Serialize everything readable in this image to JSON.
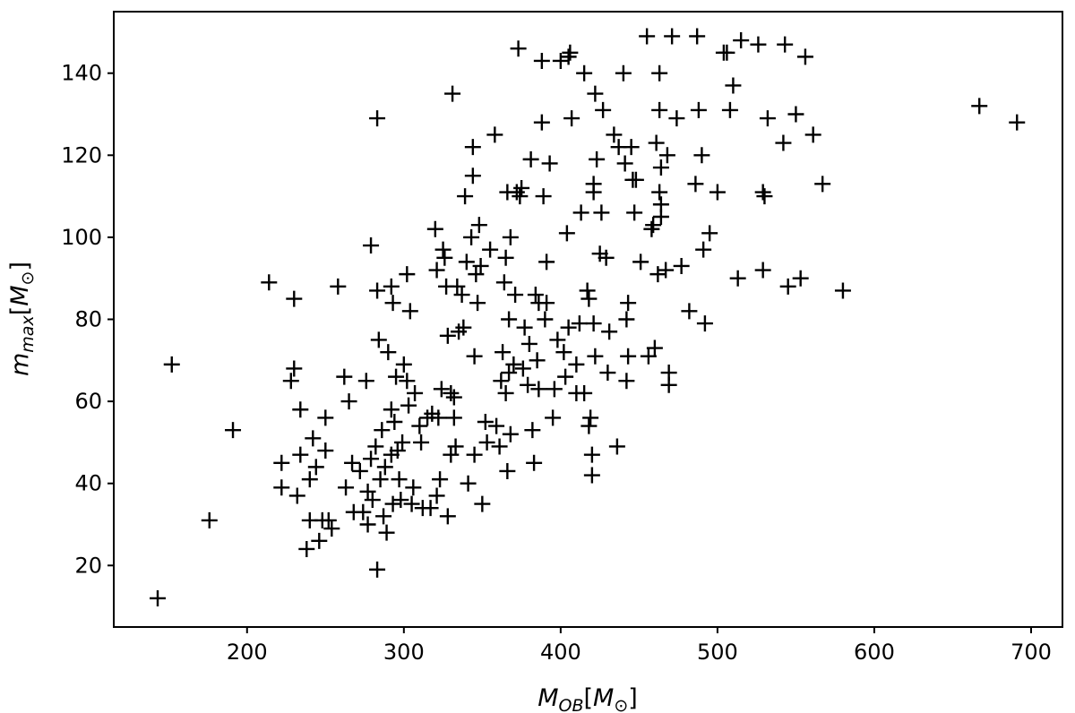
{
  "chart_data": {
    "type": "scatter",
    "marker": "+",
    "color": "#000000",
    "grid": false,
    "xlabel": {
      "main": "M",
      "sub": "OB",
      "unit_main": "M",
      "unit_sub": "⊙"
    },
    "ylabel": {
      "main": "m",
      "sub": "max",
      "unit_main": "M",
      "unit_sub": "⊙"
    },
    "xlim": [
      115,
      720
    ],
    "ylim": [
      5,
      155
    ],
    "xticks": [
      200,
      300,
      400,
      500,
      600,
      700
    ],
    "yticks": [
      20,
      40,
      60,
      80,
      100,
      120,
      140
    ],
    "points": [
      [
        143,
        12
      ],
      [
        152,
        69
      ],
      [
        176,
        31
      ],
      [
        191,
        53
      ],
      [
        214,
        89
      ],
      [
        222,
        45
      ],
      [
        222,
        39
      ],
      [
        228,
        65
      ],
      [
        230,
        68
      ],
      [
        230,
        85
      ],
      [
        232,
        37
      ],
      [
        234,
        58
      ],
      [
        234,
        47
      ],
      [
        238,
        24
      ],
      [
        240,
        41
      ],
      [
        240,
        31
      ],
      [
        242,
        51
      ],
      [
        244,
        44
      ],
      [
        246,
        26
      ],
      [
        248,
        31
      ],
      [
        250,
        48
      ],
      [
        250,
        56
      ],
      [
        252,
        31
      ],
      [
        254,
        29
      ],
      [
        258,
        88
      ],
      [
        262,
        66
      ],
      [
        263,
        39
      ],
      [
        265,
        60
      ],
      [
        267,
        45
      ],
      [
        268,
        33
      ],
      [
        272,
        43
      ],
      [
        274,
        33
      ],
      [
        276,
        65
      ],
      [
        277,
        38
      ],
      [
        277,
        30
      ],
      [
        279,
        98
      ],
      [
        279,
        46
      ],
      [
        280,
        36
      ],
      [
        282,
        49
      ],
      [
        283,
        19
      ],
      [
        283,
        87
      ],
      [
        283,
        129
      ],
      [
        284,
        75
      ],
      [
        285,
        41
      ],
      [
        286,
        53
      ],
      [
        287,
        32
      ],
      [
        288,
        44
      ],
      [
        289,
        28
      ],
      [
        290,
        72
      ],
      [
        292,
        88
      ],
      [
        292,
        58
      ],
      [
        292,
        47
      ],
      [
        293,
        84
      ],
      [
        293,
        35
      ],
      [
        294,
        55
      ],
      [
        295,
        66
      ],
      [
        296,
        48
      ],
      [
        297,
        41
      ],
      [
        298,
        36
      ],
      [
        299,
        50
      ],
      [
        300,
        69
      ],
      [
        302,
        65
      ],
      [
        302,
        91
      ],
      [
        303,
        59
      ],
      [
        304,
        82
      ],
      [
        305,
        35
      ],
      [
        306,
        39
      ],
      [
        307,
        62
      ],
      [
        310,
        54
      ],
      [
        311,
        50
      ],
      [
        312,
        34
      ],
      [
        315,
        56
      ],
      [
        317,
        34
      ],
      [
        318,
        57
      ],
      [
        320,
        102
      ],
      [
        321,
        37
      ],
      [
        321,
        92
      ],
      [
        322,
        56
      ],
      [
        323,
        41
      ],
      [
        324,
        63
      ],
      [
        325,
        97
      ],
      [
        326,
        95
      ],
      [
        327,
        88
      ],
      [
        328,
        32
      ],
      [
        328,
        76
      ],
      [
        330,
        47
      ],
      [
        330,
        62
      ],
      [
        331,
        135
      ],
      [
        332,
        56
      ],
      [
        332,
        61
      ],
      [
        333,
        49
      ],
      [
        334,
        88
      ],
      [
        335,
        77
      ],
      [
        337,
        86
      ],
      [
        338,
        78
      ],
      [
        339,
        110
      ],
      [
        340,
        94
      ],
      [
        341,
        40
      ],
      [
        343,
        100
      ],
      [
        344,
        122
      ],
      [
        344,
        115
      ],
      [
        345,
        71
      ],
      [
        345,
        47
      ],
      [
        346,
        91
      ],
      [
        347,
        84
      ],
      [
        348,
        103
      ],
      [
        349,
        93
      ],
      [
        350,
        35
      ],
      [
        352,
        55
      ],
      [
        353,
        50
      ],
      [
        355,
        97
      ],
      [
        358,
        125
      ],
      [
        359,
        54
      ],
      [
        361,
        49
      ],
      [
        362,
        65
      ],
      [
        363,
        72
      ],
      [
        364,
        89
      ],
      [
        365,
        95
      ],
      [
        365,
        62
      ],
      [
        366,
        43
      ],
      [
        366,
        111
      ],
      [
        367,
        67
      ],
      [
        367,
        80
      ],
      [
        368,
        100
      ],
      [
        368,
        52
      ],
      [
        370,
        69
      ],
      [
        371,
        86
      ],
      [
        372,
        111
      ],
      [
        373,
        146
      ],
      [
        374,
        110
      ],
      [
        375,
        112
      ],
      [
        376,
        68
      ],
      [
        377,
        78
      ],
      [
        379,
        64
      ],
      [
        380,
        74
      ],
      [
        381,
        119
      ],
      [
        382,
        53
      ],
      [
        383,
        45
      ],
      [
        384,
        86
      ],
      [
        385,
        70
      ],
      [
        386,
        63
      ],
      [
        386,
        84
      ],
      [
        388,
        128
      ],
      [
        388,
        143
      ],
      [
        389,
        110
      ],
      [
        390,
        80
      ],
      [
        391,
        94
      ],
      [
        391,
        84
      ],
      [
        393,
        118
      ],
      [
        395,
        56
      ],
      [
        396,
        63
      ],
      [
        398,
        75
      ],
      [
        400,
        143
      ],
      [
        402,
        72
      ],
      [
        403,
        66
      ],
      [
        404,
        101
      ],
      [
        405,
        78
      ],
      [
        405,
        144
      ],
      [
        406,
        145
      ],
      [
        407,
        129
      ],
      [
        410,
        62
      ],
      [
        410,
        69
      ],
      [
        412,
        79
      ],
      [
        413,
        106
      ],
      [
        415,
        140
      ],
      [
        415,
        62
      ],
      [
        417,
        87
      ],
      [
        418,
        54
      ],
      [
        418,
        85
      ],
      [
        419,
        56
      ],
      [
        420,
        42
      ],
      [
        420,
        47
      ],
      [
        421,
        113
      ],
      [
        421,
        111
      ],
      [
        421,
        79
      ],
      [
        422,
        71
      ],
      [
        422,
        135
      ],
      [
        423,
        119
      ],
      [
        425,
        96
      ],
      [
        426,
        106
      ],
      [
        427,
        131
      ],
      [
        429,
        95
      ],
      [
        430,
        67
      ],
      [
        431,
        77
      ],
      [
        434,
        125
      ],
      [
        436,
        49
      ],
      [
        437,
        122
      ],
      [
        440,
        140
      ],
      [
        441,
        118
      ],
      [
        442,
        65
      ],
      [
        442,
        80
      ],
      [
        443,
        71
      ],
      [
        443,
        84
      ],
      [
        445,
        122
      ],
      [
        446,
        114
      ],
      [
        447,
        106
      ],
      [
        448,
        114
      ],
      [
        451,
        94
      ],
      [
        455,
        149
      ],
      [
        456,
        71
      ],
      [
        458,
        102
      ],
      [
        459,
        103
      ],
      [
        460,
        73
      ],
      [
        461,
        123
      ],
      [
        462,
        91
      ],
      [
        463,
        140
      ],
      [
        463,
        131
      ],
      [
        463,
        111
      ],
      [
        464,
        117
      ],
      [
        464,
        108
      ],
      [
        464,
        105
      ],
      [
        467,
        92
      ],
      [
        468,
        120
      ],
      [
        469,
        64
      ],
      [
        469,
        67
      ],
      [
        471,
        149
      ],
      [
        474,
        129
      ],
      [
        477,
        93
      ],
      [
        482,
        82
      ],
      [
        486,
        113
      ],
      [
        487,
        149
      ],
      [
        488,
        131
      ],
      [
        490,
        120
      ],
      [
        491,
        97
      ],
      [
        492,
        79
      ],
      [
        495,
        101
      ],
      [
        500,
        111
      ],
      [
        504,
        145
      ],
      [
        506,
        145
      ],
      [
        508,
        131
      ],
      [
        510,
        137
      ],
      [
        513,
        90
      ],
      [
        515,
        148
      ],
      [
        526,
        147
      ],
      [
        529,
        111
      ],
      [
        529,
        92
      ],
      [
        530,
        110
      ],
      [
        532,
        129
      ],
      [
        542,
        123
      ],
      [
        543,
        147
      ],
      [
        545,
        88
      ],
      [
        550,
        130
      ],
      [
        553,
        90
      ],
      [
        556,
        144
      ],
      [
        561,
        125
      ],
      [
        567,
        113
      ],
      [
        580,
        87
      ],
      [
        667,
        132
      ],
      [
        691,
        128
      ]
    ]
  }
}
